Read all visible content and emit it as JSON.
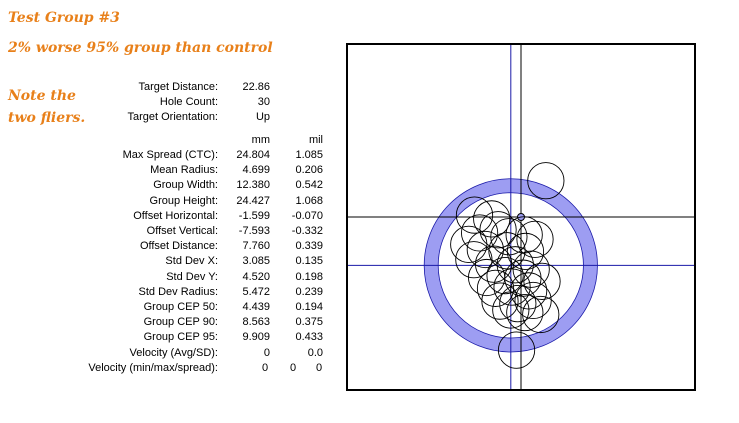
{
  "notes": {
    "title": "Test Group #3",
    "subtitle": "2% worse 95% group than control",
    "aside_line1": "Note the",
    "aside_line2": "two fliers."
  },
  "setup": [
    {
      "label": "Target Distance:",
      "value": "22.86"
    },
    {
      "label": "Hole Count:",
      "value": "30"
    },
    {
      "label": "Target Orientation:",
      "value": "Up"
    }
  ],
  "columns": {
    "mm": "mm",
    "mil": "mil"
  },
  "stats": [
    {
      "label": "Max Spread (CTC):",
      "mm": "24.804",
      "mil": "1.085"
    },
    {
      "label": "Mean Radius:",
      "mm": "4.699",
      "mil": "0.206"
    },
    {
      "label": "Group Width:",
      "mm": "12.380",
      "mil": "0.542"
    },
    {
      "label": "Group Height:",
      "mm": "24.427",
      "mil": "1.068"
    },
    {
      "label": "Offset Horizontal:",
      "mm": "-1.599",
      "mil": "-0.070"
    },
    {
      "label": "Offset Vertical:",
      "mm": "-7.593",
      "mil": "-0.332"
    },
    {
      "label": "Offset Distance:",
      "mm": "7.760",
      "mil": "0.339"
    },
    {
      "label": "Std Dev X:",
      "mm": "3.085",
      "mil": "0.135"
    },
    {
      "label": "Std Dev Y:",
      "mm": "4.520",
      "mil": "0.198"
    },
    {
      "label": "Std Dev Radius:",
      "mm": "5.472",
      "mil": "0.239"
    },
    {
      "label": "Group CEP 50:",
      "mm": "4.439",
      "mil": "0.194"
    },
    {
      "label": "Group CEP 90:",
      "mm": "8.563",
      "mil": "0.375"
    },
    {
      "label": "Group CEP 95:",
      "mm": "9.909",
      "mil": "0.433"
    }
  ],
  "velocity": {
    "avg_label": "Velocity (Avg/SD):",
    "avg": "0",
    "sd": "0.0",
    "mms_label": "Velocity (min/max/spread):",
    "min": "0",
    "max": "0",
    "spread": "0"
  },
  "chart_data": {
    "type": "scatter",
    "title": "",
    "xlabel": "",
    "ylabel": "",
    "units": "mm",
    "xlim": [
      -27,
      27
    ],
    "ylim": [
      -27,
      27
    ],
    "grid": false,
    "axis_color": "#000000",
    "group_center_line_color": "#1a1aa8",
    "ring_color": "#9d9df2",
    "ring_outline_color": "#1a1aa8",
    "hole_diameter_mm": 5.7,
    "group_center": {
      "x": -1.599,
      "y": -7.593
    },
    "ring_radius_mm": 12.5,
    "ring_width_mm": 2.2,
    "holes": [
      {
        "x": 3.9,
        "y": 5.7
      },
      {
        "x": -7.3,
        "y": 0.3
      },
      {
        "x": -4.6,
        "y": -0.3
      },
      {
        "x": -3.6,
        "y": -2.0
      },
      {
        "x": -6.5,
        "y": -2.5
      },
      {
        "x": -1.9,
        "y": -3.1
      },
      {
        "x": 0.5,
        "y": -2.8
      },
      {
        "x": 2.2,
        "y": -3.5
      },
      {
        "x": -8.2,
        "y": -4.3
      },
      {
        "x": -5.6,
        "y": -5.1
      },
      {
        "x": -2.2,
        "y": -5.3
      },
      {
        "x": 0.7,
        "y": -5.4
      },
      {
        "x": -7.4,
        "y": -6.7
      },
      {
        "x": -4.3,
        "y": -7.4
      },
      {
        "x": -0.9,
        "y": -7.5
      },
      {
        "x": 1.6,
        "y": -8.2
      },
      {
        "x": -5.4,
        "y": -9.5
      },
      {
        "x": -2.5,
        "y": -9.2
      },
      {
        "x": 0.3,
        "y": -9.6
      },
      {
        "x": 3.3,
        "y": -10.1
      },
      {
        "x": -4.0,
        "y": -11.2
      },
      {
        "x": -1.4,
        "y": -11.0
      },
      {
        "x": 1.2,
        "y": -11.6
      },
      {
        "x": -3.3,
        "y": -13.2
      },
      {
        "x": -0.5,
        "y": -13.6
      },
      {
        "x": 1.9,
        "y": -13.1
      },
      {
        "x": -1.6,
        "y": -14.6
      },
      {
        "x": 0.6,
        "y": -15.0
      },
      {
        "x": 3.1,
        "y": -15.3
      },
      {
        "x": -0.7,
        "y": -20.9
      }
    ]
  }
}
